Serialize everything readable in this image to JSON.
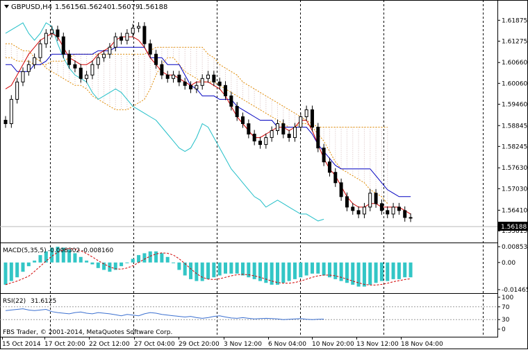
{
  "main": {
    "symbol_label": "GBPUSD,H4",
    "ohlc": [
      "1.56156",
      "1.56240",
      "1.56079",
      "1.56188"
    ],
    "current_price": "1.56188",
    "price_ticks": [
      "1.61875",
      "1.61275",
      "1.60660",
      "1.60060",
      "1.59460",
      "1.58845",
      "1.58245",
      "1.57630",
      "1.57030",
      "1.56410",
      "1.55815"
    ]
  },
  "macd": {
    "label": "MACD(5,35,5)",
    "values": [
      "-0.008302",
      "-0.008160"
    ],
    "ticks": [
      "0.008537",
      "0.00",
      "-0.014656"
    ]
  },
  "rsi": {
    "label": "RSI(22)",
    "value": "31.6125",
    "ticks": [
      "100",
      "70",
      "30",
      "0"
    ]
  },
  "footer": {
    "copyright": "FBS Trader, © 2001-2014, MetaQuotes Software Corp."
  },
  "time_axis": {
    "labels": [
      "15 Oct 2014",
      "17 Oct 20:00",
      "22 Oct 12:00",
      "27 Oct 04:00",
      "29 Oct 20:00",
      "3 Nov 12:00",
      "6 Nov 04:00",
      "10 Nov 20:00",
      "13 Nov 12:00",
      "18 Nov 04:00"
    ]
  },
  "colors": {
    "candle": "#000000",
    "tenkan": "#d00000",
    "kijun": "#0000c0",
    "chikou": "#22bfc8",
    "span": "#e08a00",
    "cloud": "#d6bcbc",
    "macd_hist": "#33c6c6",
    "macd_signal": "#d00000",
    "rsi": "#3a6fd0",
    "grid": "#000000",
    "price_tag_bg": "#000000",
    "price_tag_text": "#ffffff"
  },
  "chart_data": {
    "type": "candlestick",
    "symbol": "GBPUSD",
    "timeframe": "H4",
    "x_labels": [
      "15 Oct 2014",
      "17 Oct 20:00",
      "22 Oct 12:00",
      "27 Oct 04:00",
      "29 Oct 20:00",
      "3 Nov 12:00",
      "6 Nov 04:00",
      "10 Nov 20:00",
      "13 Nov 12:00",
      "18 Nov 04:00"
    ],
    "ylim": [
      1.556,
      1.621
    ],
    "close": [
      1.589,
      1.596,
      1.601,
      1.604,
      1.606,
      1.608,
      1.612,
      1.615,
      1.616,
      1.614,
      1.609,
      1.606,
      1.605,
      1.602,
      1.603,
      1.606,
      1.608,
      1.609,
      1.611,
      1.614,
      1.613,
      1.615,
      1.6165,
      1.617,
      1.612,
      1.609,
      1.606,
      1.603,
      1.602,
      1.603,
      1.601,
      1.6,
      1.599,
      1.6,
      1.602,
      1.603,
      1.601,
      1.6,
      1.597,
      1.594,
      1.591,
      1.589,
      1.586,
      1.584,
      1.583,
      1.585,
      1.587,
      1.589,
      1.586,
      1.585,
      1.588,
      1.591,
      1.593,
      1.588,
      1.582,
      1.578,
      1.575,
      1.572,
      1.568,
      1.565,
      1.564,
      1.563,
      1.565,
      1.569,
      1.566,
      1.564,
      1.563,
      1.565,
      1.564,
      1.562,
      1.5619
    ],
    "tenkan": [
      1.599,
      1.6,
      1.603,
      1.606,
      1.609,
      1.611,
      1.613,
      1.614,
      1.615,
      1.614,
      1.611,
      1.608,
      1.607,
      1.606,
      1.606,
      1.607,
      1.609,
      1.61,
      1.611,
      1.613,
      1.614,
      1.614,
      1.614,
      1.613,
      1.611,
      1.608,
      1.606,
      1.604,
      1.603,
      1.603,
      1.602,
      1.601,
      1.6,
      1.601,
      1.601,
      1.601,
      1.6,
      1.599,
      1.597,
      1.594,
      1.591,
      1.589,
      1.587,
      1.585,
      1.585,
      1.586,
      1.587,
      1.588,
      1.588,
      1.587,
      1.588,
      1.59,
      1.59,
      1.587,
      1.583,
      1.579,
      1.576,
      1.574,
      1.571,
      1.568,
      1.566,
      1.565,
      1.565,
      1.566,
      1.566,
      1.565,
      1.565,
      1.565,
      1.565,
      1.564,
      1.563
    ],
    "kijun": [
      1.606,
      1.606,
      1.604,
      1.604,
      1.604,
      1.606,
      1.606,
      1.607,
      1.609,
      1.609,
      1.609,
      1.609,
      1.609,
      1.609,
      1.609,
      1.609,
      1.61,
      1.61,
      1.61,
      1.611,
      1.611,
      1.611,
      1.611,
      1.611,
      1.611,
      1.608,
      1.608,
      1.608,
      1.606,
      1.606,
      1.606,
      1.603,
      1.6,
      1.599,
      1.597,
      1.597,
      1.597,
      1.596,
      1.596,
      1.596,
      1.594,
      1.593,
      1.592,
      1.591,
      1.59,
      1.59,
      1.59,
      1.588,
      1.588,
      1.588,
      1.588,
      1.588,
      1.588,
      1.586,
      1.583,
      1.581,
      1.579,
      1.577,
      1.576,
      1.576,
      1.576,
      1.576,
      1.576,
      1.576,
      1.574,
      1.572,
      1.57,
      1.569,
      1.568,
      1.568,
      1.568
    ],
    "chikou": [
      1.615,
      1.616,
      1.617,
      1.618,
      1.615,
      1.613,
      1.615,
      1.618,
      1.617,
      1.612,
      1.608,
      1.605,
      1.603,
      1.602,
      1.601,
      1.598,
      1.596,
      1.597,
      1.598,
      1.599,
      1.598,
      1.596,
      1.594,
      1.593,
      1.592,
      1.591,
      1.59,
      1.588,
      1.586,
      1.584,
      1.582,
      1.581,
      1.582,
      1.585,
      1.589,
      1.588,
      1.585,
      1.582,
      1.579,
      1.576,
      1.574,
      1.572,
      1.57,
      1.568,
      1.567,
      1.565,
      1.566,
      1.567,
      1.566,
      1.565,
      1.564,
      1.563,
      1.563,
      1.562,
      1.561,
      1.5615
    ],
    "span_a": [
      1.612,
      1.612,
      1.611,
      1.61,
      1.61,
      1.608,
      1.607,
      1.605,
      1.604,
      1.603,
      1.602,
      1.601,
      1.6,
      1.6,
      1.599,
      1.597,
      1.596,
      1.595,
      1.594,
      1.593,
      1.593,
      1.593,
      1.594,
      1.595,
      1.596,
      1.599,
      1.603,
      1.606,
      1.608,
      1.608,
      1.606,
      1.604,
      1.603,
      1.602,
      1.601,
      1.601,
      1.601,
      1.6,
      1.599,
      1.598,
      1.597,
      1.596,
      1.595,
      1.594,
      1.593,
      1.592,
      1.591,
      1.59,
      1.589,
      1.588,
      1.588,
      1.589,
      1.589,
      1.588,
      1.586,
      1.584,
      1.581,
      1.578,
      1.576,
      1.575,
      1.574,
      1.573,
      1.572,
      1.57,
      1.569,
      1.568,
      1.566
    ],
    "span_b": [
      1.608,
      1.608,
      1.607,
      1.607,
      1.607,
      1.606,
      1.606,
      1.606,
      1.607,
      1.607,
      1.607,
      1.608,
      1.609,
      1.609,
      1.609,
      1.609,
      1.609,
      1.609,
      1.609,
      1.609,
      1.609,
      1.609,
      1.609,
      1.609,
      1.609,
      1.61,
      1.611,
      1.611,
      1.611,
      1.611,
      1.611,
      1.611,
      1.611,
      1.611,
      1.611,
      1.609,
      1.608,
      1.606,
      1.605,
      1.604,
      1.603,
      1.601,
      1.6,
      1.599,
      1.598,
      1.597,
      1.596,
      1.595,
      1.594,
      1.593,
      1.592,
      1.591,
      1.59,
      1.589,
      1.588,
      1.588,
      1.588,
      1.588,
      1.588,
      1.588,
      1.588,
      1.588,
      1.588,
      1.588,
      1.588,
      1.588,
      1.588
    ],
    "macd_hist": [
      -0.012,
      -0.01,
      -0.008,
      -0.005,
      -0.002,
      0.001,
      0.004,
      0.006,
      0.008,
      0.0085,
      0.008,
      0.007,
      0.005,
      0.003,
      0.001,
      -0.001,
      -0.003,
      -0.004,
      -0.005,
      -0.004,
      -0.002,
      0.0,
      0.002,
      0.004,
      0.005,
      0.006,
      0.006,
      0.005,
      0.003,
      0.0,
      -0.004,
      -0.007,
      -0.009,
      -0.01,
      -0.01,
      -0.009,
      -0.008,
      -0.007,
      -0.006,
      -0.006,
      -0.006,
      -0.007,
      -0.008,
      -0.009,
      -0.01,
      -0.011,
      -0.012,
      -0.012,
      -0.011,
      -0.01,
      -0.009,
      -0.008,
      -0.007,
      -0.006,
      -0.006,
      -0.007,
      -0.008,
      -0.009,
      -0.01,
      -0.011,
      -0.012,
      -0.013,
      -0.013,
      -0.012,
      -0.011,
      -0.01,
      -0.01,
      -0.009,
      -0.009,
      -0.008,
      -0.008
    ],
    "macd_ylim": [
      -0.014656,
      0.008537
    ],
    "rsi": [
      58,
      60,
      62,
      64,
      60,
      58,
      60,
      62,
      55,
      52,
      50,
      48,
      52,
      54,
      50,
      48,
      52,
      50,
      48,
      45,
      42,
      46,
      44,
      42,
      48,
      52,
      50,
      46,
      44,
      42,
      40,
      38,
      40,
      36,
      34,
      36,
      40,
      42,
      38,
      35,
      34,
      36,
      34,
      32,
      33,
      34,
      33,
      32,
      30,
      31,
      32,
      33,
      31,
      30,
      31,
      31.6
    ],
    "rsi_ylim": [
      0,
      100
    ],
    "rsi_levels": [
      70,
      30
    ]
  }
}
